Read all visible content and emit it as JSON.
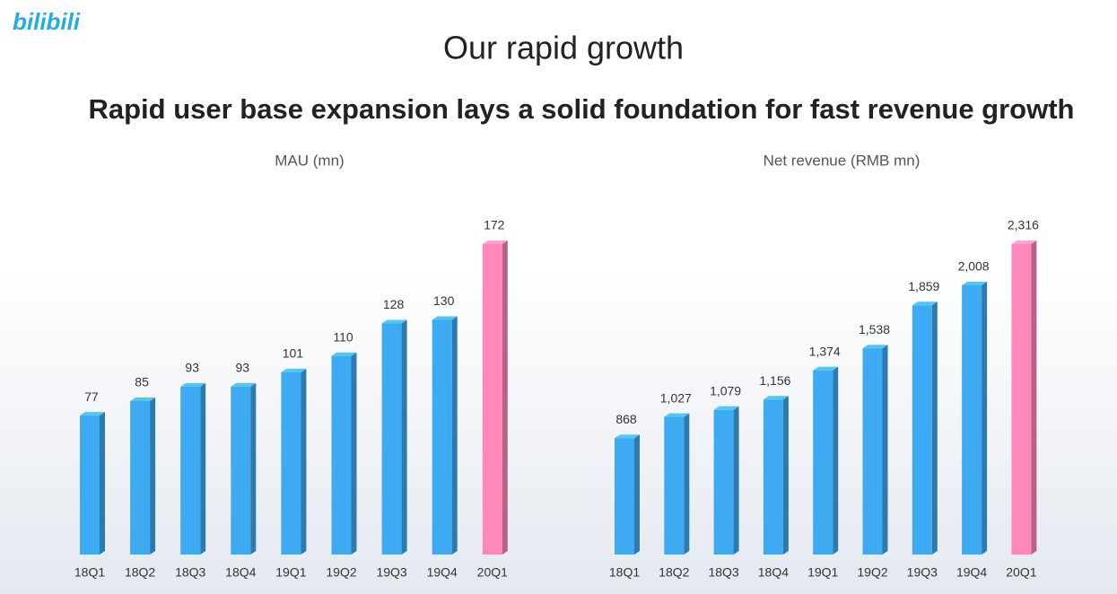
{
  "logo": "bilibili",
  "title": "Our rapid growth",
  "subtitle": "Rapid user base expansion lays a solid foundation for fast revenue growth",
  "chart_data": [
    {
      "type": "bar3d",
      "title": "MAU (mn)",
      "categories": [
        "18Q1",
        "18Q2",
        "18Q3",
        "18Q4",
        "19Q1",
        "19Q2",
        "19Q3",
        "19Q4",
        "20Q1"
      ],
      "values": [
        77,
        85,
        93,
        93,
        101,
        110,
        128,
        130,
        172
      ],
      "colors": [
        "#3daaf2",
        "#3daaf2",
        "#3daaf2",
        "#3daaf2",
        "#3daaf2",
        "#3daaf2",
        "#3daaf2",
        "#3daaf2",
        "#ff88bb"
      ]
    },
    {
      "type": "bar3d",
      "title": "Net revenue (RMB mn)",
      "categories": [
        "18Q1",
        "18Q2",
        "18Q3",
        "18Q4",
        "19Q1",
        "19Q2",
        "19Q3",
        "19Q4",
        "20Q1"
      ],
      "values": [
        868,
        1027,
        1079,
        1156,
        1374,
        1538,
        1859,
        2008,
        2316
      ],
      "value_labels": [
        "868",
        "1,027",
        "1,079",
        "1,156",
        "1,374",
        "1,538",
        "1,859",
        "2,008",
        "2,316"
      ],
      "colors": [
        "#3daaf2",
        "#3daaf2",
        "#3daaf2",
        "#3daaf2",
        "#3daaf2",
        "#3daaf2",
        "#3daaf2",
        "#3daaf2",
        "#ff88bb"
      ]
    }
  ]
}
